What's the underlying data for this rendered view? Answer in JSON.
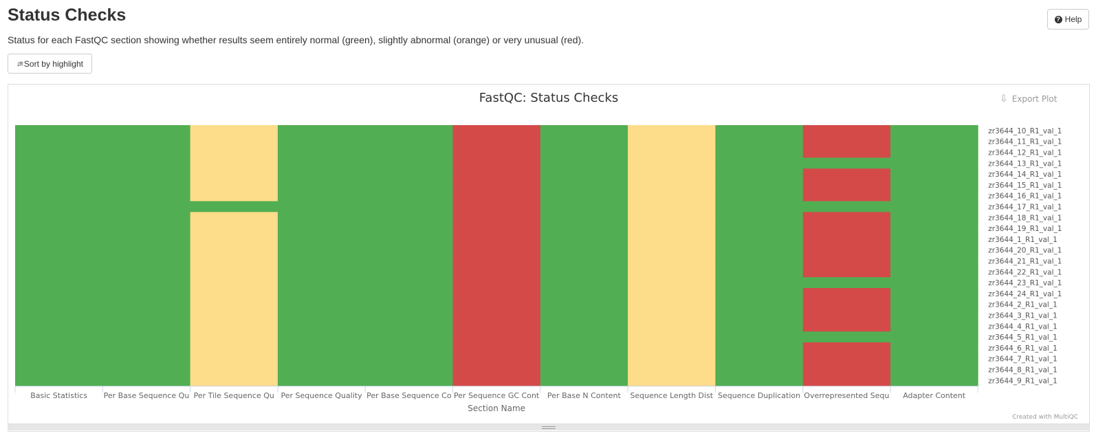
{
  "page": {
    "title": "Status Checks",
    "description": "Status for each FastQC section showing whether results seem entirely normal (green), slightly abnormal (orange) or very unusual (red).",
    "help_label": "Help",
    "sort_label": "Sort by highlight"
  },
  "plot": {
    "export_label": "Export Plot",
    "credit": "Created with MultiQC"
  },
  "colors": {
    "pass": "#52ae52",
    "warn": "#fddc8a",
    "fail": "#d44a48"
  },
  "icons": [
    "help-icon",
    "sort-icon",
    "export-icon",
    "resize-grip-icon"
  ],
  "chart_data": {
    "type": "heatmap",
    "title": "FastQC: Status Checks",
    "xlabel": "Section Name",
    "ylabel": "",
    "x_categories": [
      "Basic Statistics",
      "Per Base Sequence Qu",
      "Per Tile Sequence Qu",
      "Per Sequence Quality",
      "Per Base Sequence Co",
      "Per Sequence GC Cont",
      "Per Base N Content",
      "Sequence Length Dist",
      "Sequence Duplication",
      "Overrepresented Sequ",
      "Adapter Content"
    ],
    "y_categories": [
      "zr3644_10_R1_val_1",
      "zr3644_11_R1_val_1",
      "zr3644_12_R1_val_1",
      "zr3644_13_R1_val_1",
      "zr3644_14_R1_val_1",
      "zr3644_15_R1_val_1",
      "zr3644_16_R1_val_1",
      "zr3644_17_R1_val_1",
      "zr3644_18_R1_val_1",
      "zr3644_19_R1_val_1",
      "zr3644_1_R1_val_1",
      "zr3644_20_R1_val_1",
      "zr3644_21_R1_val_1",
      "zr3644_22_R1_val_1",
      "zr3644_23_R1_val_1",
      "zr3644_24_R1_val_1",
      "zr3644_2_R1_val_1",
      "zr3644_3_R1_val_1",
      "zr3644_4_R1_val_1",
      "zr3644_5_R1_val_1",
      "zr3644_6_R1_val_1",
      "zr3644_7_R1_val_1",
      "zr3644_8_R1_val_1",
      "zr3644_9_R1_val_1"
    ],
    "values_legend": "pass = normal (green), warn = slightly abnormal (orange), fail = very unusual (red)",
    "values": [
      [
        "pass",
        "pass",
        "warn",
        "pass",
        "pass",
        "fail",
        "pass",
        "warn",
        "pass",
        "fail",
        "pass"
      ],
      [
        "pass",
        "pass",
        "warn",
        "pass",
        "pass",
        "fail",
        "pass",
        "warn",
        "pass",
        "fail",
        "pass"
      ],
      [
        "pass",
        "pass",
        "warn",
        "pass",
        "pass",
        "fail",
        "pass",
        "warn",
        "pass",
        "fail",
        "pass"
      ],
      [
        "pass",
        "pass",
        "warn",
        "pass",
        "pass",
        "fail",
        "pass",
        "warn",
        "pass",
        "pass",
        "pass"
      ],
      [
        "pass",
        "pass",
        "warn",
        "pass",
        "pass",
        "fail",
        "pass",
        "warn",
        "pass",
        "fail",
        "pass"
      ],
      [
        "pass",
        "pass",
        "warn",
        "pass",
        "pass",
        "fail",
        "pass",
        "warn",
        "pass",
        "fail",
        "pass"
      ],
      [
        "pass",
        "pass",
        "warn",
        "pass",
        "pass",
        "fail",
        "pass",
        "warn",
        "pass",
        "fail",
        "pass"
      ],
      [
        "pass",
        "pass",
        "pass",
        "pass",
        "pass",
        "fail",
        "pass",
        "warn",
        "pass",
        "pass",
        "pass"
      ],
      [
        "pass",
        "pass",
        "warn",
        "pass",
        "pass",
        "fail",
        "pass",
        "warn",
        "pass",
        "fail",
        "pass"
      ],
      [
        "pass",
        "pass",
        "warn",
        "pass",
        "pass",
        "fail",
        "pass",
        "warn",
        "pass",
        "fail",
        "pass"
      ],
      [
        "pass",
        "pass",
        "warn",
        "pass",
        "pass",
        "fail",
        "pass",
        "warn",
        "pass",
        "fail",
        "pass"
      ],
      [
        "pass",
        "pass",
        "warn",
        "pass",
        "pass",
        "fail",
        "pass",
        "warn",
        "pass",
        "fail",
        "pass"
      ],
      [
        "pass",
        "pass",
        "warn",
        "pass",
        "pass",
        "fail",
        "pass",
        "warn",
        "pass",
        "fail",
        "pass"
      ],
      [
        "pass",
        "pass",
        "warn",
        "pass",
        "pass",
        "fail",
        "pass",
        "warn",
        "pass",
        "fail",
        "pass"
      ],
      [
        "pass",
        "pass",
        "warn",
        "pass",
        "pass",
        "fail",
        "pass",
        "warn",
        "pass",
        "pass",
        "pass"
      ],
      [
        "pass",
        "pass",
        "warn",
        "pass",
        "pass",
        "fail",
        "pass",
        "warn",
        "pass",
        "fail",
        "pass"
      ],
      [
        "pass",
        "pass",
        "warn",
        "pass",
        "pass",
        "fail",
        "pass",
        "warn",
        "pass",
        "fail",
        "pass"
      ],
      [
        "pass",
        "pass",
        "warn",
        "pass",
        "pass",
        "fail",
        "pass",
        "warn",
        "pass",
        "fail",
        "pass"
      ],
      [
        "pass",
        "pass",
        "warn",
        "pass",
        "pass",
        "fail",
        "pass",
        "warn",
        "pass",
        "fail",
        "pass"
      ],
      [
        "pass",
        "pass",
        "warn",
        "pass",
        "pass",
        "fail",
        "pass",
        "warn",
        "pass",
        "pass",
        "pass"
      ],
      [
        "pass",
        "pass",
        "warn",
        "pass",
        "pass",
        "fail",
        "pass",
        "warn",
        "pass",
        "fail",
        "pass"
      ],
      [
        "pass",
        "pass",
        "warn",
        "pass",
        "pass",
        "fail",
        "pass",
        "warn",
        "pass",
        "fail",
        "pass"
      ],
      [
        "pass",
        "pass",
        "warn",
        "pass",
        "pass",
        "fail",
        "pass",
        "warn",
        "pass",
        "fail",
        "pass"
      ],
      [
        "pass",
        "pass",
        "warn",
        "pass",
        "pass",
        "fail",
        "pass",
        "warn",
        "pass",
        "fail",
        "pass"
      ]
    ],
    "grid": false,
    "legend": "none"
  }
}
